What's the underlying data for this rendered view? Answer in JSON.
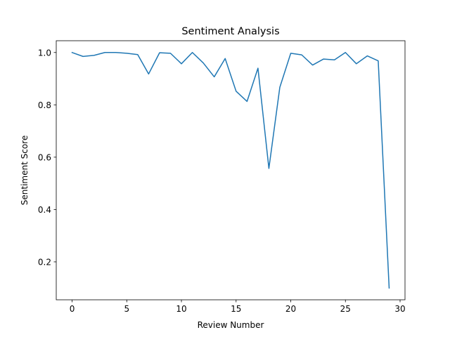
{
  "chart_data": {
    "type": "line",
    "title": "Sentiment Analysis",
    "xlabel": "Review Number",
    "ylabel": "Sentiment Score",
    "xlim": [
      -1.45,
      30.45
    ],
    "ylim": [
      0.055,
      1.045
    ],
    "xticks": [
      0,
      5,
      10,
      15,
      20,
      25,
      30
    ],
    "yticks": [
      0.2,
      0.4,
      0.6,
      0.8,
      1.0
    ],
    "xtick_labels": [
      "0",
      "5",
      "10",
      "15",
      "20",
      "25",
      "30"
    ],
    "ytick_labels": [
      "0.2",
      "0.4",
      "0.6",
      "0.8",
      "1.0"
    ],
    "grid": false,
    "series": [
      {
        "color": "#1f77b4",
        "x": [
          0,
          1,
          2,
          3,
          4,
          5,
          6,
          7,
          8,
          9,
          10,
          11,
          12,
          13,
          14,
          15,
          16,
          17,
          18,
          19,
          20,
          21,
          22,
          23,
          24,
          25,
          26,
          27,
          28,
          29
        ],
        "values": [
          1.0,
          0.985,
          0.989,
          1.0,
          1.0,
          0.997,
          0.992,
          0.918,
          0.999,
          0.997,
          0.957,
          1.0,
          0.96,
          0.907,
          0.977,
          0.852,
          0.813,
          0.94,
          0.557,
          0.867,
          0.997,
          0.991,
          0.952,
          0.975,
          0.972,
          1.0,
          0.957,
          0.987,
          0.968,
          0.1
        ]
      }
    ]
  }
}
